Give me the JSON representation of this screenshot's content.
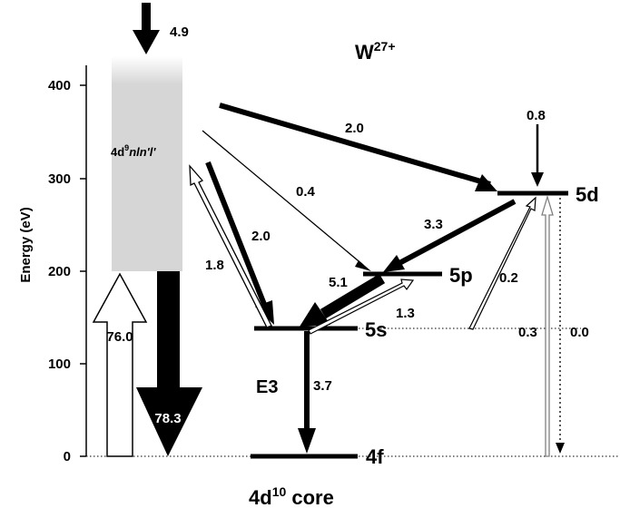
{
  "title": {
    "base": "W",
    "sup": "27+"
  },
  "axis": {
    "ylabel": "Energy (eV)",
    "yticks": [
      "0",
      "100",
      "200",
      "300",
      "400"
    ]
  },
  "band": {
    "base": "4d",
    "sup": "9",
    "rest": "nln'l'"
  },
  "levels": {
    "l4f": "4f",
    "l5s": "5s",
    "l5p": "5p",
    "l5d": "5d"
  },
  "core": {
    "base": "4d",
    "sup": "10",
    "rest": " core"
  },
  "transition": {
    "e3": "E3"
  },
  "rates": {
    "top_in": "4.9",
    "d_in": "0.8",
    "band_to_5d": "2.0",
    "band_to_5p": "0.4",
    "band_to_5s": "2.0",
    "s_to_band": "1.8",
    "d_to_p": "3.3",
    "p_to_s": "5.1",
    "s_to_p": "1.3",
    "s_to_d": "0.2",
    "s_to_f": "3.7",
    "ground_to_band": "76.0",
    "band_to_ground": "78.3",
    "ground_to_5d": "0.3",
    "d_to_ground": "0.0"
  },
  "colors": {
    "band": "#d6d6d6",
    "grey_arrow": "#808080"
  }
}
